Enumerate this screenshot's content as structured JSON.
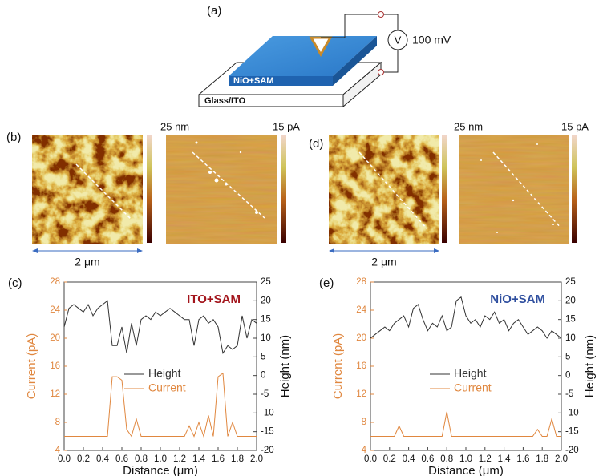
{
  "schematic": {
    "label": "(a)",
    "voltage": "100 mV",
    "meter": "V",
    "layer": "NiO+SAM",
    "substrate": "Glass/ITO"
  },
  "images": [
    {
      "label": "(b)",
      "height_scale": "25 nm",
      "current_scale": "15 pA",
      "scale_bar": "2 μm"
    },
    {
      "label": "(d)",
      "height_scale": "25 nm",
      "current_scale": "15 pA",
      "scale_bar": "2 μm"
    }
  ],
  "chart_data": [
    {
      "type": "line",
      "panel_label": "(c)",
      "annotation": "ITO+SAM",
      "annotation_color": "#a3151c",
      "xlabel": "Distance (μm)",
      "ylabel": "Current (pA)",
      "y2label": "Height (nm)",
      "y_color": "#e0873f",
      "x": [
        0,
        0.05,
        0.1,
        0.15,
        0.2,
        0.25,
        0.3,
        0.35,
        0.4,
        0.45,
        0.5,
        0.55,
        0.6,
        0.65,
        0.7,
        0.75,
        0.8,
        0.85,
        0.9,
        0.95,
        1,
        1.05,
        1.1,
        1.15,
        1.2,
        1.25,
        1.3,
        1.35,
        1.4,
        1.45,
        1.5,
        1.55,
        1.6,
        1.65,
        1.7,
        1.75,
        1.8,
        1.85,
        1.9,
        1.95,
        2
      ],
      "xlim": [
        0,
        2
      ],
      "xticks": [
        {
          "value": 0,
          "label": "0.0"
        },
        0.2,
        0.4,
        0.6,
        0.8,
        {
          "value": 1,
          "label": "1.0"
        },
        1.2,
        1.4,
        1.6,
        1.8,
        {
          "value": 2,
          "label": "2.0"
        }
      ],
      "ylim": [
        4,
        28
      ],
      "yticks": [
        4,
        8,
        12,
        16,
        20,
        24,
        28
      ],
      "y2lim": [
        -20,
        25
      ],
      "y2ticks": [
        -20,
        -15,
        -10,
        -5,
        0,
        5,
        10,
        15,
        20,
        25
      ],
      "legend": "center",
      "series": [
        {
          "name": "Height",
          "color": "#333333",
          "axis": "y2",
          "values": [
            13,
            18,
            19,
            18,
            17,
            19,
            16,
            18,
            19,
            20,
            8,
            8,
            13,
            6,
            14,
            8,
            15,
            16,
            15,
            17,
            16,
            17,
            18,
            17,
            16,
            15,
            15,
            8,
            15,
            16,
            14,
            15,
            13,
            6,
            8,
            7,
            8,
            16,
            10,
            15,
            14
          ]
        },
        {
          "name": "Current",
          "color": "#e0873f",
          "values": [
            6,
            6,
            6,
            6,
            6,
            6,
            6,
            6,
            6,
            6,
            14.5,
            14.5,
            14,
            7,
            6,
            8.5,
            6,
            6,
            6,
            6,
            6,
            6,
            6,
            6,
            6,
            6,
            7.5,
            6,
            8,
            6,
            9,
            6,
            14.5,
            15,
            6,
            8,
            6,
            6,
            6,
            6,
            6
          ]
        }
      ]
    },
    {
      "type": "line",
      "panel_label": "(e)",
      "annotation": "NiO+SAM",
      "annotation_color": "#2f4f9f",
      "xlabel": "Distance (μm)",
      "ylabel": "Current (pA)",
      "y2label": "Height (nm)",
      "y_color": "#e0873f",
      "x": [
        0,
        0.05,
        0.1,
        0.15,
        0.2,
        0.25,
        0.3,
        0.35,
        0.4,
        0.45,
        0.5,
        0.55,
        0.6,
        0.65,
        0.7,
        0.75,
        0.8,
        0.85,
        0.9,
        0.95,
        1,
        1.05,
        1.1,
        1.15,
        1.2,
        1.25,
        1.3,
        1.35,
        1.4,
        1.45,
        1.5,
        1.55,
        1.6,
        1.65,
        1.7,
        1.75,
        1.8,
        1.85,
        1.9,
        1.95,
        2
      ],
      "xlim": [
        0,
        2
      ],
      "xticks": [
        {
          "value": 0,
          "label": "0.0"
        },
        0.2,
        0.4,
        0.6,
        0.8,
        {
          "value": 1,
          "label": "1.0"
        },
        1.2,
        1.4,
        1.6,
        1.8,
        {
          "value": 2,
          "label": "2.0"
        }
      ],
      "ylim": [
        4,
        28
      ],
      "yticks": [
        4,
        8,
        12,
        16,
        20,
        24,
        28
      ],
      "y2lim": [
        -20,
        25
      ],
      "y2ticks": [
        -20,
        -15,
        -10,
        -5,
        0,
        5,
        10,
        15,
        20,
        25
      ],
      "legend": "center",
      "series": [
        {
          "name": "Height",
          "color": "#333333",
          "axis": "y2",
          "values": [
            10,
            11,
            12,
            13,
            12,
            14,
            15,
            16,
            13,
            18,
            19,
            15,
            12,
            14,
            13,
            16,
            12,
            13,
            20,
            21,
            16,
            14,
            15,
            13,
            16,
            15,
            17,
            14,
            15,
            12,
            14,
            15,
            13,
            11,
            12,
            13,
            12,
            10,
            12,
            11,
            10
          ]
        },
        {
          "name": "Current",
          "color": "#e0873f",
          "values": [
            6,
            6,
            6,
            6,
            6,
            6,
            7.5,
            6,
            6,
            6,
            6,
            6,
            6,
            6,
            6,
            6,
            9.5,
            6,
            6,
            6,
            6,
            6,
            6,
            6,
            6,
            6,
            6,
            6,
            6,
            6,
            6,
            6,
            6,
            6,
            6,
            7,
            6,
            6,
            8.5,
            6,
            6
          ]
        }
      ]
    }
  ]
}
